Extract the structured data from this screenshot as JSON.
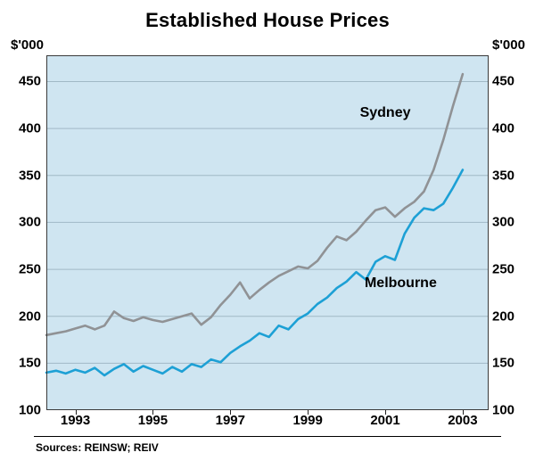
{
  "title": "Established House Prices",
  "units": {
    "left": "$'000",
    "right": "$'000"
  },
  "source_note": "Sources: REINSW; REIV",
  "colors": {
    "plot_background": "#cfe5f1",
    "grid": "#a0b9c6",
    "frame": "#3a3a3a",
    "sydney": "#909295",
    "melbourne": "#1da0d5"
  },
  "chart_data": {
    "type": "line",
    "title": "Established House Prices",
    "ylabel": "$'000",
    "grid": true,
    "legend_position": "inline-labels",
    "xlim": [
      1992.25,
      2003.67
    ],
    "ylim": [
      100,
      478
    ],
    "x_ticks": [
      1993,
      1995,
      1997,
      1999,
      2001,
      2003
    ],
    "y_ticks": [
      100,
      150,
      200,
      250,
      300,
      350,
      400,
      450
    ],
    "x": [
      1992.25,
      1992.5,
      1992.75,
      1993,
      1993.25,
      1993.5,
      1993.75,
      1994,
      1994.25,
      1994.5,
      1994.75,
      1995,
      1995.25,
      1995.5,
      1995.75,
      1996,
      1996.25,
      1996.5,
      1996.75,
      1997,
      1997.25,
      1997.5,
      1997.75,
      1998,
      1998.25,
      1998.5,
      1998.75,
      1999,
      1999.25,
      1999.5,
      1999.75,
      2000,
      2000.25,
      2000.5,
      2000.75,
      2001,
      2001.25,
      2001.5,
      2001.75,
      2002,
      2002.25,
      2002.5,
      2002.75,
      2003
    ],
    "series": [
      {
        "name": "Sydney",
        "color": "#909295",
        "label_pos": {
          "x": 2001.0,
          "y": 416
        },
        "values": [
          180,
          182,
          184,
          187,
          190,
          186,
          190,
          205,
          198,
          195,
          199,
          196,
          194,
          197,
          200,
          203,
          191,
          199,
          212,
          223,
          236,
          219,
          228,
          236,
          243,
          248,
          253,
          251,
          259,
          273,
          285,
          281,
          290,
          302,
          313,
          316,
          306,
          315,
          322,
          333,
          356,
          388,
          424,
          458
        ]
      },
      {
        "name": "Melbourne",
        "color": "#1da0d5",
        "label_pos": {
          "x": 2001.4,
          "y": 235
        },
        "values": [
          140,
          142,
          139,
          143,
          140,
          145,
          137,
          144,
          149,
          141,
          147,
          143,
          139,
          146,
          141,
          149,
          146,
          154,
          151,
          161,
          168,
          174,
          182,
          178,
          190,
          186,
          197,
          203,
          213,
          220,
          230,
          237,
          247,
          239,
          258,
          264,
          260,
          288,
          305,
          315,
          313,
          320,
          337,
          356
        ]
      }
    ]
  }
}
